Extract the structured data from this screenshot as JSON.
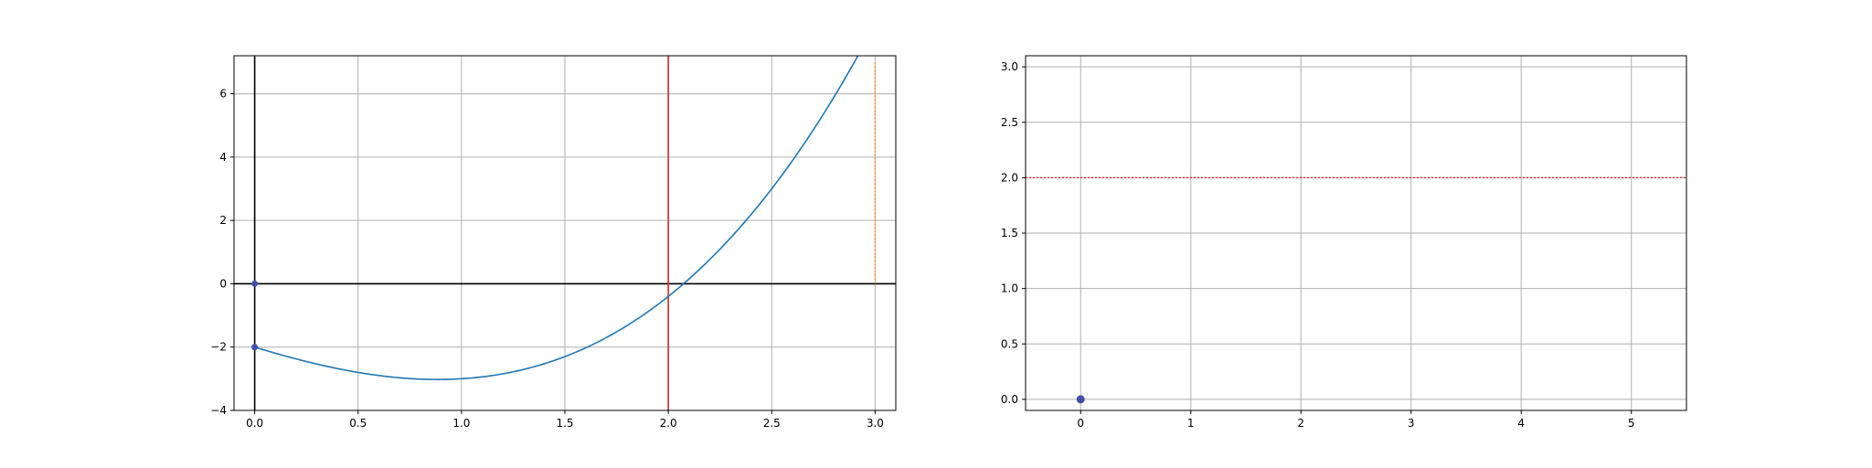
{
  "chart_data": [
    {
      "type": "line",
      "title": "",
      "xlabel": "",
      "ylabel": "",
      "xlim": [
        -0.1,
        3.1
      ],
      "ylim": [
        -4,
        7.2
      ],
      "xticks": [
        0.0,
        0.5,
        1.0,
        1.5,
        2.0,
        2.5,
        3.0
      ],
      "xtick_labels": [
        "0.0",
        "0.5",
        "1.0",
        "1.5",
        "2.0",
        "2.5",
        "3.0"
      ],
      "yticks": [
        -4,
        -2,
        0,
        2,
        4,
        6
      ],
      "ytick_labels": [
        "−4",
        "−2",
        "0",
        "2",
        "4",
        "6"
      ],
      "grid": true,
      "series": [
        {
          "color": "#1f77b4",
          "x": [
            0,
            0.1,
            0.2,
            0.3,
            0.4,
            0.5,
            0.6,
            0.7,
            0.8,
            0.9,
            1.0,
            1.1,
            1.2,
            1.3,
            1.4,
            1.5,
            1.6,
            1.7,
            1.8,
            1.9,
            2.0,
            2.1,
            2.2,
            2.3,
            2.4,
            2.5,
            2.6,
            2.7,
            2.8,
            2.9,
            3.0
          ],
          "y": [
            -2.0,
            -2.131,
            -2.248,
            -2.343,
            -2.416,
            -2.5,
            -2.568,
            -2.6,
            -2.59,
            -2.54,
            -2.45,
            -2.32,
            -2.15,
            -1.94,
            -1.69,
            -1.4,
            -1.07,
            -0.7,
            -0.29,
            0.16,
            0.0,
            0.64,
            1.23,
            1.86,
            2.55,
            3.28,
            4.06,
            4.89,
            5.77,
            6.7,
            7.0
          ]
        }
      ],
      "points": [
        {
          "x": 0,
          "y": 0,
          "color": "#3f4fa8"
        },
        {
          "x": 0,
          "y": -2,
          "color": "#3f4fa8"
        }
      ],
      "vlines": [
        {
          "x": 0,
          "color": "#000000",
          "style": "solid"
        },
        {
          "x": 2.0,
          "color": "#d62728",
          "style": "solid"
        }
      ],
      "hlines": [
        {
          "y": 0,
          "color": "#000000",
          "style": "solid"
        }
      ],
      "vsegments": [
        {
          "x": 3.0,
          "y0": 0,
          "y1": 7.0,
          "color": "#ff7f0e",
          "style": "dotted"
        }
      ]
    },
    {
      "type": "scatter",
      "title": "",
      "xlabel": "",
      "ylabel": "",
      "xlim": [
        -0.5,
        5.5
      ],
      "ylim": [
        -0.1,
        3.1
      ],
      "xticks": [
        0,
        1,
        2,
        3,
        4,
        5
      ],
      "xtick_labels": [
        "0",
        "1",
        "2",
        "3",
        "4",
        "5"
      ],
      "yticks": [
        0.0,
        0.5,
        1.0,
        1.5,
        2.0,
        2.5,
        3.0
      ],
      "ytick_labels": [
        "0.0",
        "0.5",
        "1.0",
        "1.5",
        "2.0",
        "2.5",
        "3.0"
      ],
      "grid": true,
      "points": [
        {
          "x": 0,
          "y": 0,
          "color": "#3f4fa8"
        }
      ],
      "hlines": [
        {
          "y": 2.0,
          "color": "#d62728",
          "style": "dotted"
        }
      ]
    }
  ]
}
